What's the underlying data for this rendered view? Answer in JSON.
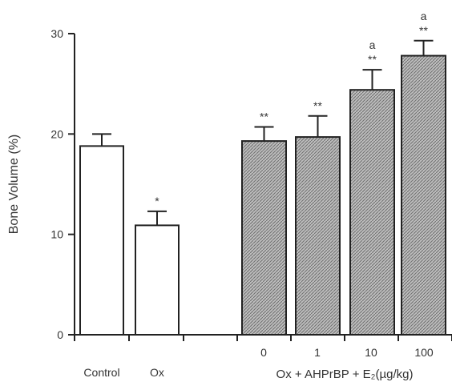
{
  "chart_data": {
    "type": "bar",
    "ylabel": "Bone Volume (%)",
    "ylim": [
      0,
      30
    ],
    "yticks": [
      "0",
      "10",
      "20",
      "30"
    ],
    "categories": [
      "Control",
      "Ox",
      "0",
      "1",
      "10",
      "100"
    ],
    "values": [
      18.8,
      10.9,
      19.3,
      19.7,
      24.4,
      27.8
    ],
    "errors": [
      1.2,
      1.4,
      1.4,
      2.1,
      2.0,
      1.5
    ],
    "annotations": [
      "",
      "*",
      "**",
      "**",
      "a\n**",
      "a\n**"
    ],
    "group_label": "Ox + AHPrBP + E₂(µg/kg)",
    "colors": {
      "open_fill": "#ffffff",
      "hatched_fill": "#bdbdbd",
      "stroke": "#222222"
    }
  }
}
